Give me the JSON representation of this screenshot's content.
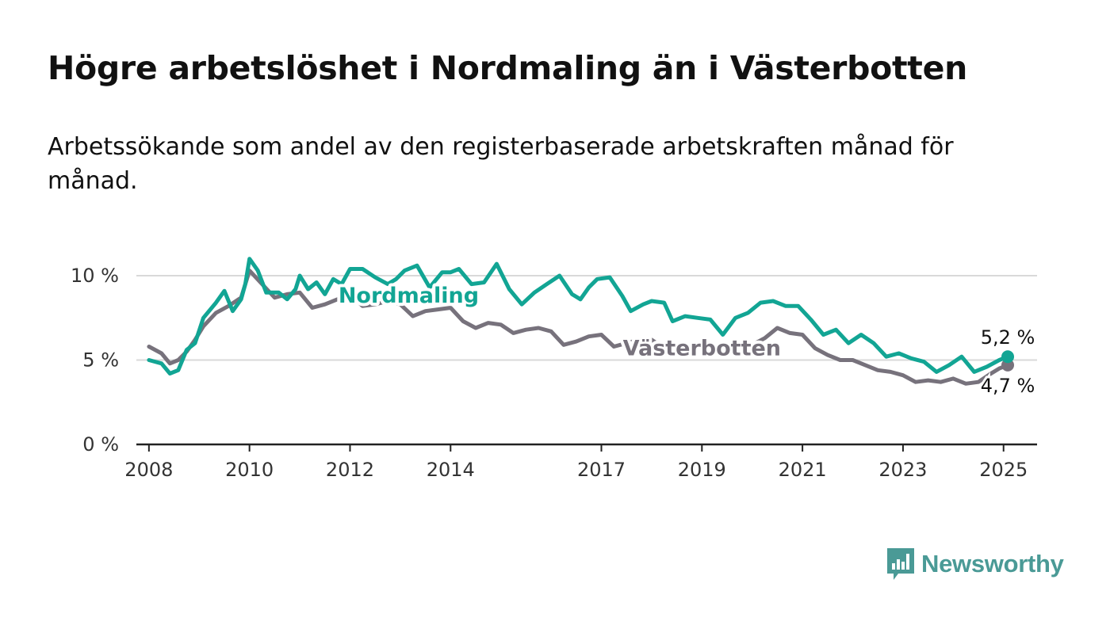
{
  "title": "Högre arbetslöshet i Nordmaling än i Västerbotten",
  "subtitle": "Arbetssökande som andel av den registerbaserade arbetskraften månad för månad.",
  "brand": {
    "name": "Newsworthy",
    "logo_icon": "bar-chart-speech-bubble-icon",
    "color": "#4a9a96"
  },
  "colors": {
    "nordmaling": "#12a594",
    "vasterbotten": "#77727c",
    "grid": "#d9d9d9",
    "axis": "#222222"
  },
  "chart_data": {
    "type": "line",
    "title": "Högre arbetslöshet i Nordmaling än i Västerbotten",
    "subtitle": "Arbetssökande som andel av den registerbaserade arbetskraften månad för månad.",
    "xlabel": "",
    "ylabel": "",
    "ylim": [
      0,
      10
    ],
    "yticks": [
      0,
      5,
      10
    ],
    "ytick_labels": [
      "0 %",
      "5 %",
      "10 %"
    ],
    "xlim": [
      "2007-10",
      "2025-09"
    ],
    "xticks": [
      "2008-01",
      "2010-01",
      "2012-01",
      "2014-01",
      "2017-01",
      "2019-01",
      "2021-01",
      "2023-01",
      "2025-01"
    ],
    "xtick_labels": [
      "2008",
      "2010",
      "2012",
      "2014",
      "2017",
      "2019",
      "2021",
      "2023",
      "2025"
    ],
    "grid": true,
    "legend": "inline labels",
    "series": [
      {
        "name": "Nordmaling",
        "color": "#12a594",
        "end_label": "5,2 %",
        "points": [
          [
            "2008-01",
            5.0
          ],
          [
            "2008-04",
            4.8
          ],
          [
            "2008-06",
            4.2
          ],
          [
            "2008-08",
            4.4
          ],
          [
            "2008-10",
            5.6
          ],
          [
            "2008-12",
            6.0
          ],
          [
            "2009-02",
            7.5
          ],
          [
            "2009-05",
            8.4
          ],
          [
            "2009-07",
            9.1
          ],
          [
            "2009-09",
            7.9
          ],
          [
            "2009-11",
            8.6
          ],
          [
            "2009-12",
            9.5
          ],
          [
            "2010-01",
            11.0
          ],
          [
            "2010-03",
            10.3
          ],
          [
            "2010-05",
            9.0
          ],
          [
            "2010-08",
            9.0
          ],
          [
            "2010-10",
            8.6
          ],
          [
            "2010-12",
            9.2
          ],
          [
            "2011-01",
            10.0
          ],
          [
            "2011-03",
            9.2
          ],
          [
            "2011-05",
            9.6
          ],
          [
            "2011-07",
            8.9
          ],
          [
            "2011-09",
            9.8
          ],
          [
            "2011-11",
            9.5
          ],
          [
            "2012-01",
            10.4
          ],
          [
            "2012-04",
            10.4
          ],
          [
            "2012-07",
            9.9
          ],
          [
            "2012-10",
            9.5
          ],
          [
            "2012-12",
            9.8
          ],
          [
            "2013-02",
            10.3
          ],
          [
            "2013-05",
            10.6
          ],
          [
            "2013-08",
            9.3
          ],
          [
            "2013-11",
            10.2
          ],
          [
            "2014-01",
            10.2
          ],
          [
            "2014-03",
            10.4
          ],
          [
            "2014-06",
            9.5
          ],
          [
            "2014-09",
            9.6
          ],
          [
            "2014-12",
            10.7
          ],
          [
            "2015-03",
            9.2
          ],
          [
            "2015-06",
            8.3
          ],
          [
            "2015-09",
            9.0
          ],
          [
            "2015-12",
            9.5
          ],
          [
            "2016-03",
            10.0
          ],
          [
            "2016-06",
            8.9
          ],
          [
            "2016-08",
            8.6
          ],
          [
            "2016-10",
            9.3
          ],
          [
            "2016-12",
            9.8
          ],
          [
            "2017-03",
            9.9
          ],
          [
            "2017-06",
            8.8
          ],
          [
            "2017-08",
            7.9
          ],
          [
            "2017-11",
            8.3
          ],
          [
            "2018-01",
            8.5
          ],
          [
            "2018-04",
            8.4
          ],
          [
            "2018-06",
            7.3
          ],
          [
            "2018-09",
            7.6
          ],
          [
            "2018-12",
            7.5
          ],
          [
            "2019-03",
            7.4
          ],
          [
            "2019-06",
            6.5
          ],
          [
            "2019-09",
            7.5
          ],
          [
            "2019-12",
            7.8
          ],
          [
            "2020-03",
            8.4
          ],
          [
            "2020-06",
            8.5
          ],
          [
            "2020-09",
            8.2
          ],
          [
            "2020-12",
            8.2
          ],
          [
            "2021-03",
            7.4
          ],
          [
            "2021-06",
            6.5
          ],
          [
            "2021-09",
            6.8
          ],
          [
            "2021-12",
            6.0
          ],
          [
            "2022-03",
            6.5
          ],
          [
            "2022-06",
            6.0
          ],
          [
            "2022-09",
            5.2
          ],
          [
            "2022-12",
            5.4
          ],
          [
            "2023-03",
            5.1
          ],
          [
            "2023-06",
            4.9
          ],
          [
            "2023-09",
            4.3
          ],
          [
            "2023-12",
            4.7
          ],
          [
            "2024-03",
            5.2
          ],
          [
            "2024-06",
            4.3
          ],
          [
            "2024-09",
            4.6
          ],
          [
            "2024-12",
            5.0
          ],
          [
            "2025-02",
            5.2
          ]
        ]
      },
      {
        "name": "Västerbotten",
        "color": "#77727c",
        "end_label": "4,7 %",
        "points": [
          [
            "2008-01",
            5.8
          ],
          [
            "2008-04",
            5.4
          ],
          [
            "2008-06",
            4.8
          ],
          [
            "2008-08",
            5.0
          ],
          [
            "2008-10",
            5.5
          ],
          [
            "2008-12",
            6.2
          ],
          [
            "2009-02",
            7.0
          ],
          [
            "2009-05",
            7.8
          ],
          [
            "2009-08",
            8.2
          ],
          [
            "2009-11",
            8.7
          ],
          [
            "2010-01",
            10.3
          ],
          [
            "2010-04",
            9.5
          ],
          [
            "2010-07",
            8.7
          ],
          [
            "2010-10",
            8.9
          ],
          [
            "2011-01",
            9.0
          ],
          [
            "2011-04",
            8.1
          ],
          [
            "2011-07",
            8.3
          ],
          [
            "2011-10",
            8.6
          ],
          [
            "2012-01",
            8.9
          ],
          [
            "2012-04",
            8.2
          ],
          [
            "2012-07",
            8.3
          ],
          [
            "2012-10",
            8.5
          ],
          [
            "2013-01",
            8.3
          ],
          [
            "2013-04",
            7.6
          ],
          [
            "2013-07",
            7.9
          ],
          [
            "2013-10",
            8.0
          ],
          [
            "2014-01",
            8.1
          ],
          [
            "2014-04",
            7.3
          ],
          [
            "2014-07",
            6.9
          ],
          [
            "2014-10",
            7.2
          ],
          [
            "2015-01",
            7.1
          ],
          [
            "2015-04",
            6.6
          ],
          [
            "2015-07",
            6.8
          ],
          [
            "2015-10",
            6.9
          ],
          [
            "2016-01",
            6.7
          ],
          [
            "2016-04",
            5.9
          ],
          [
            "2016-07",
            6.1
          ],
          [
            "2016-10",
            6.4
          ],
          [
            "2017-01",
            6.5
          ],
          [
            "2017-04",
            5.8
          ],
          [
            "2017-07",
            6.0
          ],
          [
            "2017-10",
            6.2
          ],
          [
            "2018-01",
            6.2
          ],
          [
            "2018-04",
            5.7
          ],
          [
            "2018-07",
            5.8
          ],
          [
            "2018-10",
            5.9
          ],
          [
            "2019-01",
            5.9
          ],
          [
            "2019-04",
            5.5
          ],
          [
            "2019-07",
            5.6
          ],
          [
            "2019-10",
            5.8
          ],
          [
            "2020-01",
            5.9
          ],
          [
            "2020-04",
            6.3
          ],
          [
            "2020-07",
            6.9
          ],
          [
            "2020-10",
            6.6
          ],
          [
            "2021-01",
            6.5
          ],
          [
            "2021-04",
            5.7
          ],
          [
            "2021-07",
            5.3
          ],
          [
            "2021-10",
            5.0
          ],
          [
            "2022-01",
            5.0
          ],
          [
            "2022-04",
            4.7
          ],
          [
            "2022-07",
            4.4
          ],
          [
            "2022-10",
            4.3
          ],
          [
            "2023-01",
            4.1
          ],
          [
            "2023-04",
            3.7
          ],
          [
            "2023-07",
            3.8
          ],
          [
            "2023-10",
            3.7
          ],
          [
            "2024-01",
            3.9
          ],
          [
            "2024-04",
            3.6
          ],
          [
            "2024-07",
            3.7
          ],
          [
            "2024-10",
            4.2
          ],
          [
            "2024-12",
            4.5
          ],
          [
            "2025-02",
            4.7
          ]
        ]
      }
    ],
    "annotations": [
      {
        "series": "Nordmaling",
        "text": "Nordmaling",
        "anchor_date": "2013-03",
        "anchor_value": 9.2
      },
      {
        "series": "Västerbotten",
        "text": "Västerbotten",
        "anchor_date": "2019-01",
        "anchor_value": 5.0
      }
    ]
  }
}
